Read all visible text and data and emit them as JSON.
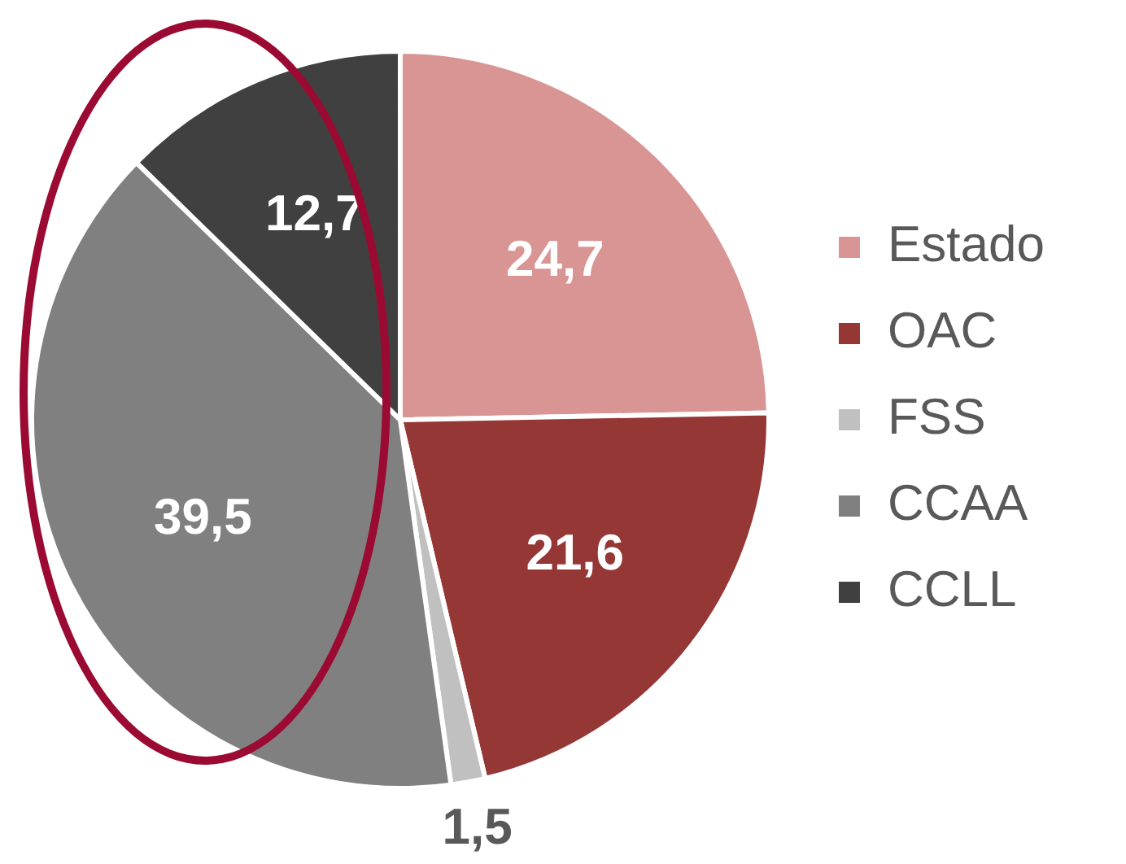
{
  "chart_data": {
    "type": "pie",
    "categories": [
      "Estado",
      "OAC",
      "FSS",
      "CCAA",
      "CCLL"
    ],
    "values": [
      24.7,
      21.6,
      1.5,
      39.5,
      12.7
    ],
    "colors": [
      "#d99594",
      "#953735",
      "#c0c0c0",
      "#808080",
      "#404040"
    ],
    "value_labels": [
      "24,7",
      "21,6",
      "1,5",
      "39,5",
      "12,7"
    ],
    "legend": "right"
  }
}
